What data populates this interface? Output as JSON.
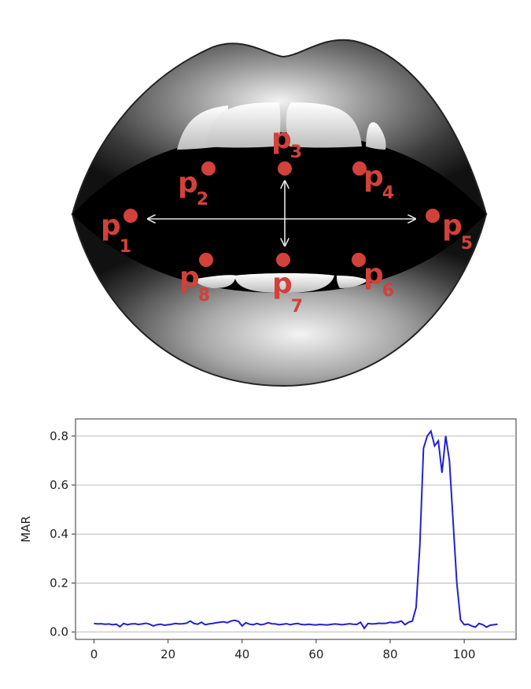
{
  "diagram": {
    "landmarks": [
      {
        "id": "p1",
        "base": "p",
        "sub": "1"
      },
      {
        "id": "p2",
        "base": "p",
        "sub": "2"
      },
      {
        "id": "p3",
        "base": "p",
        "sub": "3"
      },
      {
        "id": "p4",
        "base": "p",
        "sub": "4"
      },
      {
        "id": "p5",
        "base": "p",
        "sub": "5"
      },
      {
        "id": "p6",
        "base": "p",
        "sub": "6"
      },
      {
        "id": "p7",
        "base": "p",
        "sub": "7"
      },
      {
        "id": "p8",
        "base": "p",
        "sub": "8"
      }
    ],
    "colors": {
      "landmark": "#d2413a",
      "arrow": "#e6e6e6",
      "series": "#2222cc"
    }
  },
  "chart_data": {
    "type": "line",
    "title": "",
    "xlabel": "",
    "ylabel": "MAR",
    "xlim": [
      -5,
      114
    ],
    "ylim": [
      -0.03,
      0.87
    ],
    "xticks": [
      0,
      20,
      40,
      60,
      80,
      100
    ],
    "yticks": [
      0.0,
      0.2,
      0.4,
      0.6,
      0.8
    ],
    "xtick_labels": [
      "0",
      "20",
      "40",
      "60",
      "80",
      "100"
    ],
    "ytick_labels": [
      "0.0",
      "0.2",
      "0.4",
      "0.6",
      "0.8"
    ],
    "grid": "horizontal",
    "series": [
      {
        "x": [
          0,
          1,
          2,
          3,
          4,
          5,
          6,
          7,
          8,
          9,
          10,
          11,
          12,
          13,
          14,
          15,
          16,
          17,
          18,
          19,
          20,
          21,
          22,
          23,
          24,
          25,
          26,
          27,
          28,
          29,
          30,
          31,
          32,
          33,
          34,
          35,
          36,
          37,
          38,
          39,
          40,
          41,
          42,
          43,
          44,
          45,
          46,
          47,
          48,
          49,
          50,
          51,
          52,
          53,
          54,
          55,
          56,
          57,
          58,
          59,
          60,
          61,
          62,
          63,
          64,
          65,
          66,
          67,
          68,
          69,
          70,
          71,
          72,
          73,
          74,
          75,
          76,
          77,
          78,
          79,
          80,
          81,
          82,
          83,
          84,
          85,
          86,
          87,
          88,
          89,
          90,
          91,
          92,
          93,
          94,
          95,
          96,
          97,
          98,
          99,
          100,
          101,
          102,
          103,
          104,
          105,
          106,
          107,
          108,
          109
        ],
        "y": [
          0.035,
          0.033,
          0.034,
          0.032,
          0.033,
          0.03,
          0.032,
          0.022,
          0.035,
          0.03,
          0.033,
          0.034,
          0.031,
          0.033,
          0.036,
          0.032,
          0.025,
          0.03,
          0.032,
          0.028,
          0.03,
          0.032,
          0.035,
          0.033,
          0.034,
          0.036,
          0.045,
          0.035,
          0.032,
          0.04,
          0.03,
          0.033,
          0.035,
          0.038,
          0.04,
          0.042,
          0.038,
          0.045,
          0.048,
          0.044,
          0.025,
          0.038,
          0.032,
          0.03,
          0.035,
          0.03,
          0.032,
          0.038,
          0.034,
          0.033,
          0.03,
          0.032,
          0.034,
          0.03,
          0.033,
          0.035,
          0.031,
          0.03,
          0.032,
          0.03,
          0.029,
          0.031,
          0.03,
          0.029,
          0.031,
          0.033,
          0.032,
          0.03,
          0.032,
          0.034,
          0.032,
          0.031,
          0.04,
          0.015,
          0.035,
          0.033,
          0.034,
          0.036,
          0.035,
          0.036,
          0.04,
          0.038,
          0.04,
          0.045,
          0.03,
          0.04,
          0.045,
          0.1,
          0.35,
          0.75,
          0.8,
          0.82,
          0.76,
          0.78,
          0.65,
          0.8,
          0.7,
          0.45,
          0.2,
          0.05,
          0.03,
          0.032,
          0.025,
          0.02,
          0.035,
          0.03,
          0.02,
          0.028,
          0.03,
          0.032
        ]
      }
    ]
  }
}
